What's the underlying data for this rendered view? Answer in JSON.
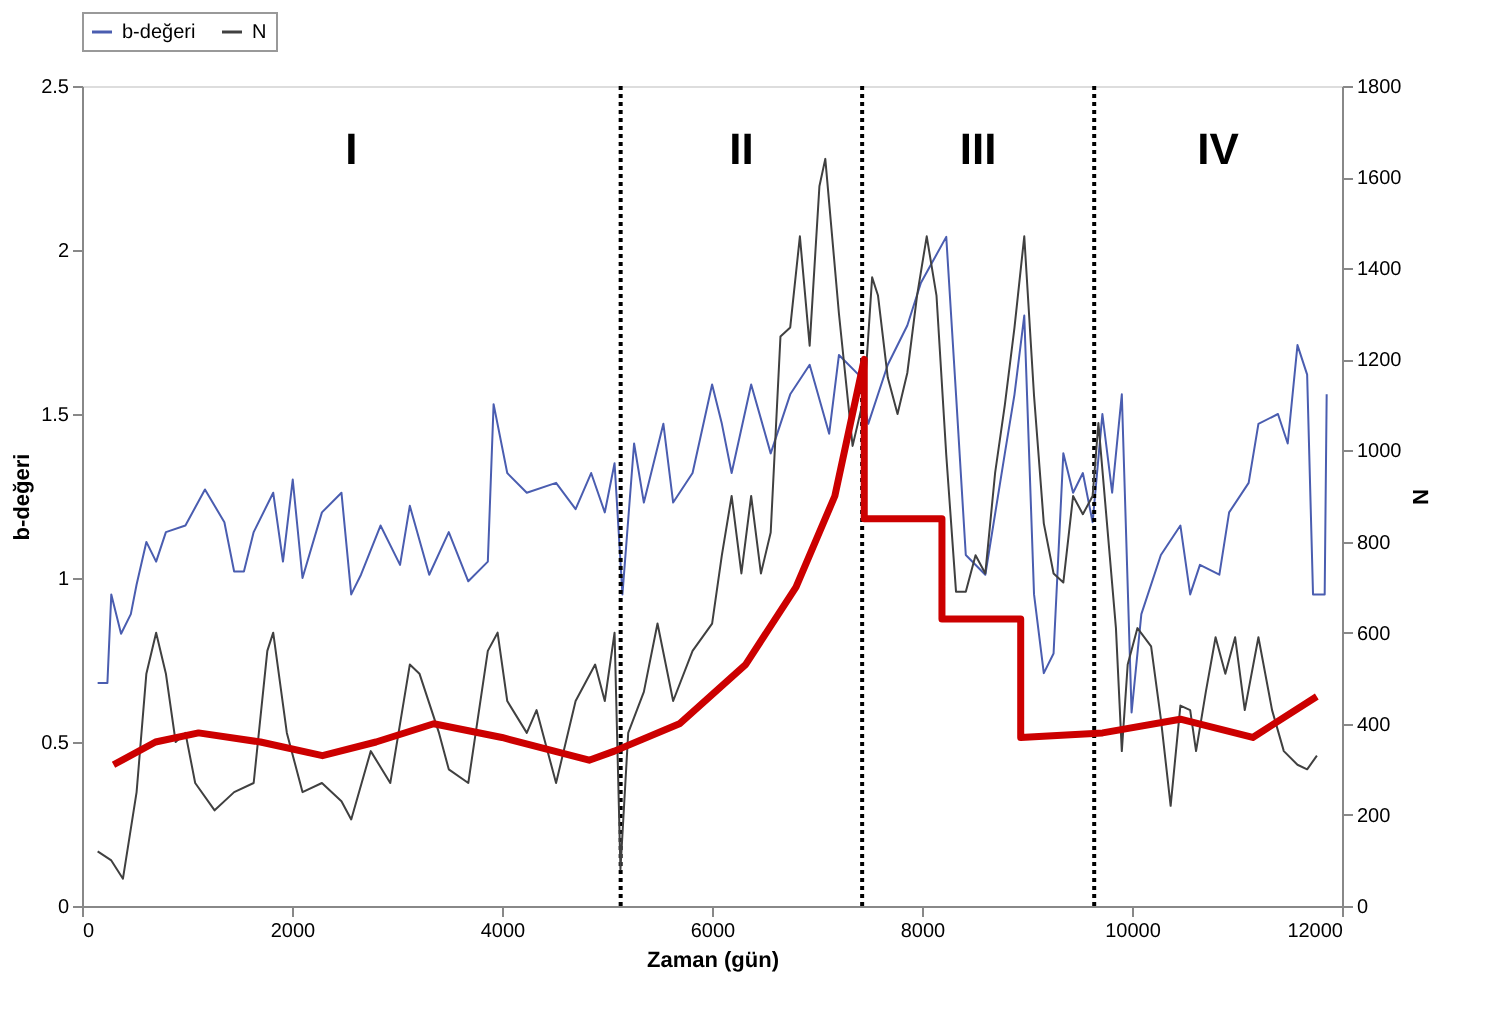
{
  "chart_data": {
    "type": "line",
    "xlabel": "Zaman (gün)",
    "ylabel": "b-değeri",
    "y2label": "N",
    "xlim": [
      0,
      12000
    ],
    "xticks": [
      0,
      2000,
      4000,
      6000,
      8000,
      10000,
      12000
    ],
    "ylim": [
      0,
      2.5
    ],
    "yticks": [
      0,
      0.5,
      1,
      1.5,
      2,
      2.5
    ],
    "y2lim": [
      0,
      1800
    ],
    "y2ticks": [
      0,
      200,
      400,
      600,
      800,
      1000,
      1200,
      1400,
      1600,
      1800
    ],
    "grid": false,
    "legend": "top",
    "series": [
      {
        "name": "b-değeri",
        "color": "#4a5db0",
        "x": [
          149,
          242,
          279,
          372,
          465,
          520,
          613,
          706,
          799,
          985,
          1171,
          1356,
          1449,
          1542,
          1635,
          1821,
          1914,
          2007,
          2100,
          2285,
          2471,
          2564,
          2657,
          2843,
          3029,
          3122,
          3307,
          3493,
          3679,
          3865,
          3920,
          4050,
          4236,
          4515,
          4701,
          4849,
          4979,
          5072,
          5147,
          5258,
          5351,
          5537,
          5630,
          5815,
          6001,
          6094,
          6187,
          6373,
          6559,
          6745,
          6930,
          7116,
          7209,
          7395,
          7488,
          7674,
          7860,
          7990,
          8231,
          8324,
          8417,
          8603,
          8789,
          8881,
          8974,
          9067,
          9160,
          9253,
          9346,
          9439,
          9532,
          9625,
          9718,
          9811,
          9903,
          9996,
          10089,
          10275,
          10461,
          10554,
          10647,
          10832,
          10925,
          11111,
          11204,
          11390,
          11483,
          11576,
          11668,
          11724,
          11835,
          11854
        ],
        "values": [
          0.68,
          0.68,
          0.95,
          0.83,
          0.89,
          0.98,
          1.11,
          1.05,
          1.14,
          1.16,
          1.27,
          1.17,
          1.02,
          1.02,
          1.14,
          1.26,
          1.05,
          1.3,
          1.0,
          1.2,
          1.26,
          0.95,
          1.01,
          1.16,
          1.04,
          1.22,
          1.01,
          1.14,
          0.99,
          1.05,
          1.53,
          1.32,
          1.26,
          1.29,
          1.21,
          1.32,
          1.2,
          1.35,
          0.95,
          1.41,
          1.23,
          1.47,
          1.23,
          1.32,
          1.59,
          1.47,
          1.32,
          1.59,
          1.38,
          1.56,
          1.65,
          1.44,
          1.68,
          1.62,
          1.47,
          1.65,
          1.77,
          1.9,
          2.04,
          1.56,
          1.07,
          1.01,
          1.38,
          1.56,
          1.8,
          0.95,
          0.71,
          0.77,
          1.38,
          1.26,
          1.32,
          1.17,
          1.5,
          1.26,
          1.56,
          0.59,
          0.89,
          1.07,
          1.16,
          0.95,
          1.04,
          1.01,
          1.2,
          1.29,
          1.47,
          1.5,
          1.41,
          1.71,
          1.62,
          0.95,
          0.95,
          1.56
        ]
      },
      {
        "name": "N",
        "color": "#404040",
        "axis": "y2",
        "x": [
          149,
          279,
          390,
          520,
          613,
          706,
          799,
          892,
          985,
          1078,
          1263,
          1449,
          1635,
          1765,
          1821,
          1951,
          2100,
          2285,
          2471,
          2564,
          2750,
          2936,
          3122,
          3214,
          3400,
          3493,
          3679,
          3865,
          3958,
          4050,
          4236,
          4329,
          4515,
          4701,
          4887,
          4979,
          5072,
          5128,
          5202,
          5351,
          5481,
          5630,
          5815,
          6001,
          6094,
          6187,
          6280,
          6373,
          6466,
          6559,
          6652,
          6745,
          6837,
          6930,
          7023,
          7079,
          7209,
          7339,
          7451,
          7525,
          7581,
          7674,
          7767,
          7860,
          7953,
          8045,
          8138,
          8231,
          8324,
          8417,
          8510,
          8603,
          8696,
          8789,
          8881,
          8974,
          9067,
          9160,
          9253,
          9346,
          9439,
          9532,
          9625,
          9680,
          9847,
          9903,
          9959,
          10052,
          10182,
          10275,
          10368,
          10461,
          10554,
          10610,
          10703,
          10796,
          10889,
          10982,
          11074,
          11204,
          11334,
          11446,
          11576,
          11668,
          11761
        ],
        "values": [
          120,
          100,
          60,
          250,
          510,
          600,
          510,
          360,
          380,
          270,
          210,
          250,
          270,
          560,
          600,
          380,
          250,
          270,
          230,
          190,
          340,
          270,
          530,
          510,
          380,
          300,
          270,
          560,
          600,
          450,
          380,
          430,
          270,
          450,
          530,
          450,
          600,
          80,
          380,
          470,
          620,
          450,
          560,
          620,
          770,
          900,
          730,
          900,
          730,
          820,
          1250,
          1270,
          1470,
          1230,
          1580,
          1640,
          1300,
          1010,
          1120,
          1380,
          1340,
          1160,
          1080,
          1170,
          1340,
          1470,
          1340,
          990,
          690,
          690,
          770,
          730,
          950,
          1100,
          1270,
          1470,
          1120,
          840,
          730,
          710,
          900,
          860,
          900,
          1060,
          610,
          340,
          530,
          610,
          570,
          410,
          220,
          440,
          430,
          340,
          470,
          590,
          510,
          590,
          430,
          590,
          430,
          340,
          310,
          300,
          330
        ]
      },
      {
        "color": "#cc0000",
        "axis": "y2",
        "x": [
          300,
          700,
          1110,
          1700,
          2290,
          2800,
          3350,
          4000,
          4830,
          5070,
          5690,
          6320,
          6800,
          7170,
          7450,
          7450,
          8190,
          8190,
          8940,
          8940,
          9720,
          10460,
          11150,
          11760
        ],
        "values": [
          310,
          360,
          380,
          360,
          330,
          360,
          400,
          370,
          320,
          340,
          400,
          530,
          700,
          900,
          1200,
          850,
          850,
          630,
          630,
          370,
          380,
          410,
          370,
          460
        ]
      }
    ],
    "ref_lines": [
      {
        "axis": "x",
        "value": 5130,
        "color": "#000000",
        "line_style": "dotted"
      },
      {
        "axis": "x",
        "value": 7430,
        "color": "#000000",
        "line_style": "dotted"
      },
      {
        "axis": "x",
        "value": 9640,
        "color": "#000000",
        "line_style": "dotted"
      }
    ],
    "annotations": [
      "I",
      "II",
      "III",
      "IV"
    ]
  }
}
